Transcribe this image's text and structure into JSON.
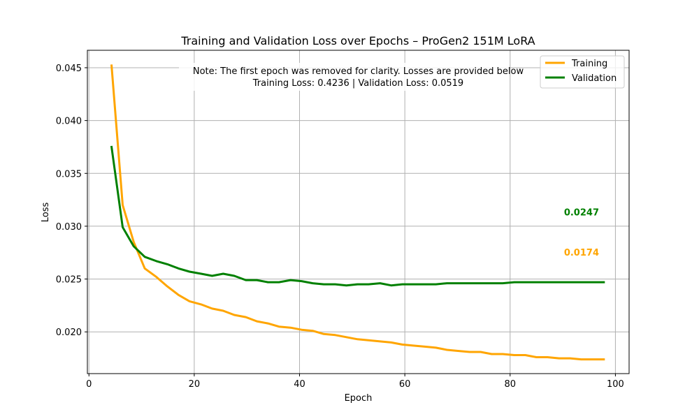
{
  "chart_data": {
    "type": "line",
    "title": "Training and Validation Loss over Epochs – ProGen2 151M LoRA",
    "xlabel": "Epoch",
    "ylabel": "Loss",
    "xlim": [
      -0.3,
      102.6
    ],
    "ylim": [
      0.01605,
      0.04665
    ],
    "xticks": [
      0,
      20,
      40,
      60,
      80,
      100
    ],
    "yticks": [
      0.02,
      0.025,
      0.03,
      0.035,
      0.04,
      0.045
    ],
    "ytick_labels": [
      "0.020",
      "0.025",
      "0.030",
      "0.035",
      "0.040",
      "0.045"
    ],
    "grid": true,
    "legend_position": "top-right",
    "note": {
      "line1": "Note: The first epoch was removed for clarity. Losses are provided below",
      "line2": "Training Loss: 0.4236 | Validation Loss: 0.0519"
    },
    "colors": {
      "training": "#FFA500",
      "validation": "#008000",
      "grid": "#b0b0b0"
    },
    "x": [
      4.3,
      6.4,
      8.5,
      10.6,
      12.8,
      14.9,
      17.0,
      19.1,
      21.3,
      23.4,
      25.5,
      27.6,
      29.8,
      31.9,
      34.0,
      36.1,
      38.3,
      40.4,
      42.5,
      44.6,
      46.8,
      48.9,
      51.0,
      53.1,
      55.3,
      57.4,
      59.5,
      61.6,
      63.8,
      65.9,
      68.0,
      70.1,
      72.3,
      74.4,
      76.5,
      78.6,
      80.8,
      82.9,
      85.0,
      87.1,
      89.3,
      91.4,
      93.5,
      95.6,
      97.8
    ],
    "series": [
      {
        "name": "Training",
        "values": [
          0.0452,
          0.032,
          0.0285,
          0.026,
          0.0252,
          0.0243,
          0.0235,
          0.0229,
          0.0226,
          0.0222,
          0.022,
          0.0216,
          0.0214,
          0.021,
          0.0208,
          0.0205,
          0.0204,
          0.0202,
          0.0201,
          0.0198,
          0.0197,
          0.0195,
          0.0193,
          0.0192,
          0.0191,
          0.019,
          0.0188,
          0.0187,
          0.0186,
          0.0185,
          0.0183,
          0.0182,
          0.0181,
          0.0181,
          0.0179,
          0.0179,
          0.0178,
          0.0178,
          0.0176,
          0.0176,
          0.0175,
          0.0175,
          0.0174,
          0.0174,
          0.0174
        ]
      },
      {
        "name": "Validation",
        "values": [
          0.0375,
          0.0299,
          0.0281,
          0.0271,
          0.0267,
          0.0264,
          0.026,
          0.0257,
          0.0255,
          0.0253,
          0.0255,
          0.0253,
          0.0249,
          0.0249,
          0.0247,
          0.0247,
          0.0249,
          0.0248,
          0.0246,
          0.0245,
          0.0245,
          0.0244,
          0.0245,
          0.0245,
          0.0246,
          0.0244,
          0.0245,
          0.0245,
          0.0245,
          0.0245,
          0.0246,
          0.0246,
          0.0246,
          0.0246,
          0.0246,
          0.0246,
          0.0247,
          0.0247,
          0.0247,
          0.0247,
          0.0247,
          0.0247,
          0.0247,
          0.0247,
          0.0247
        ]
      }
    ],
    "final_labels": [
      {
        "series": "Validation",
        "text": "0.0247",
        "y": 0.0313
      },
      {
        "series": "Training",
        "text": "0.0174",
        "y": 0.0275
      }
    ]
  }
}
